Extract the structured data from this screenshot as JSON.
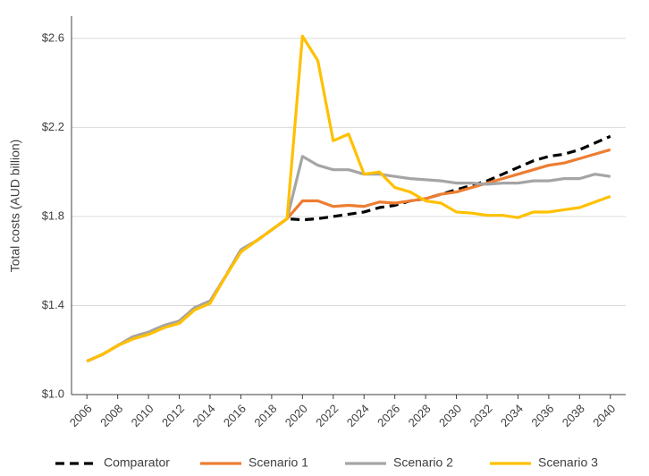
{
  "chart_data": {
    "type": "line",
    "y_label": "Total costs (AUD billion)",
    "x": [
      2006,
      2007,
      2008,
      2009,
      2010,
      2011,
      2012,
      2013,
      2014,
      2015,
      2016,
      2017,
      2018,
      2019,
      2020,
      2021,
      2022,
      2023,
      2024,
      2025,
      2026,
      2027,
      2028,
      2029,
      2030,
      2031,
      2032,
      2033,
      2034,
      2035,
      2036,
      2037,
      2038,
      2039,
      2040
    ],
    "xlim": [
      2005,
      2041
    ],
    "xticks": [
      2006,
      2008,
      2010,
      2012,
      2014,
      2016,
      2018,
      2020,
      2022,
      2024,
      2026,
      2028,
      2030,
      2032,
      2034,
      2036,
      2038,
      2040
    ],
    "ylim": [
      1.0,
      2.7
    ],
    "yticks": [
      {
        "value": 1.0,
        "label": "$1.0"
      },
      {
        "value": 1.4,
        "label": "$1.4"
      },
      {
        "value": 1.8,
        "label": "$1.8"
      },
      {
        "value": 2.2,
        "label": "$2.2"
      },
      {
        "value": 2.6,
        "label": "$2.6"
      }
    ],
    "grid": true,
    "legend": "bottom",
    "series": [
      {
        "name": "Comparator",
        "color": "#000000",
        "dashed": true,
        "values": [
          1.15,
          1.18,
          1.22,
          1.26,
          1.28,
          1.31,
          1.33,
          1.39,
          1.42,
          1.53,
          1.65,
          1.69,
          1.74,
          1.79,
          1.785,
          1.79,
          1.8,
          1.81,
          1.82,
          1.84,
          1.85,
          1.87,
          1.88,
          1.9,
          1.92,
          1.94,
          1.96,
          1.99,
          2.02,
          2.05,
          2.07,
          2.08,
          2.1,
          2.13,
          2.16
        ]
      },
      {
        "name": "Scenario 1",
        "color": "#ed7d31",
        "values": [
          1.15,
          1.18,
          1.22,
          1.26,
          1.28,
          1.31,
          1.33,
          1.39,
          1.42,
          1.53,
          1.65,
          1.69,
          1.74,
          1.79,
          1.87,
          1.87,
          1.845,
          1.85,
          1.845,
          1.865,
          1.86,
          1.87,
          1.88,
          1.9,
          1.91,
          1.93,
          1.95,
          1.97,
          1.99,
          2.01,
          2.03,
          2.04,
          2.06,
          2.08,
          2.1
        ]
      },
      {
        "name": "Scenario 2",
        "color": "#a5a5a5",
        "values": [
          1.15,
          1.18,
          1.22,
          1.26,
          1.28,
          1.31,
          1.33,
          1.39,
          1.42,
          1.53,
          1.65,
          1.69,
          1.74,
          1.79,
          2.07,
          2.03,
          2.01,
          2.01,
          1.99,
          1.99,
          1.98,
          1.97,
          1.965,
          1.96,
          1.95,
          1.95,
          1.945,
          1.95,
          1.95,
          1.96,
          1.96,
          1.97,
          1.97,
          1.99,
          1.98
        ]
      },
      {
        "name": "Scenario 3",
        "color": "#ffc000",
        "values": [
          1.15,
          1.18,
          1.22,
          1.25,
          1.27,
          1.3,
          1.32,
          1.38,
          1.41,
          1.53,
          1.64,
          1.69,
          1.74,
          1.79,
          2.61,
          2.5,
          2.14,
          2.17,
          1.99,
          2.0,
          1.93,
          1.91,
          1.87,
          1.86,
          1.82,
          1.815,
          1.805,
          1.805,
          1.795,
          1.82,
          1.82,
          1.83,
          1.84,
          1.865,
          1.89
        ]
      }
    ]
  }
}
